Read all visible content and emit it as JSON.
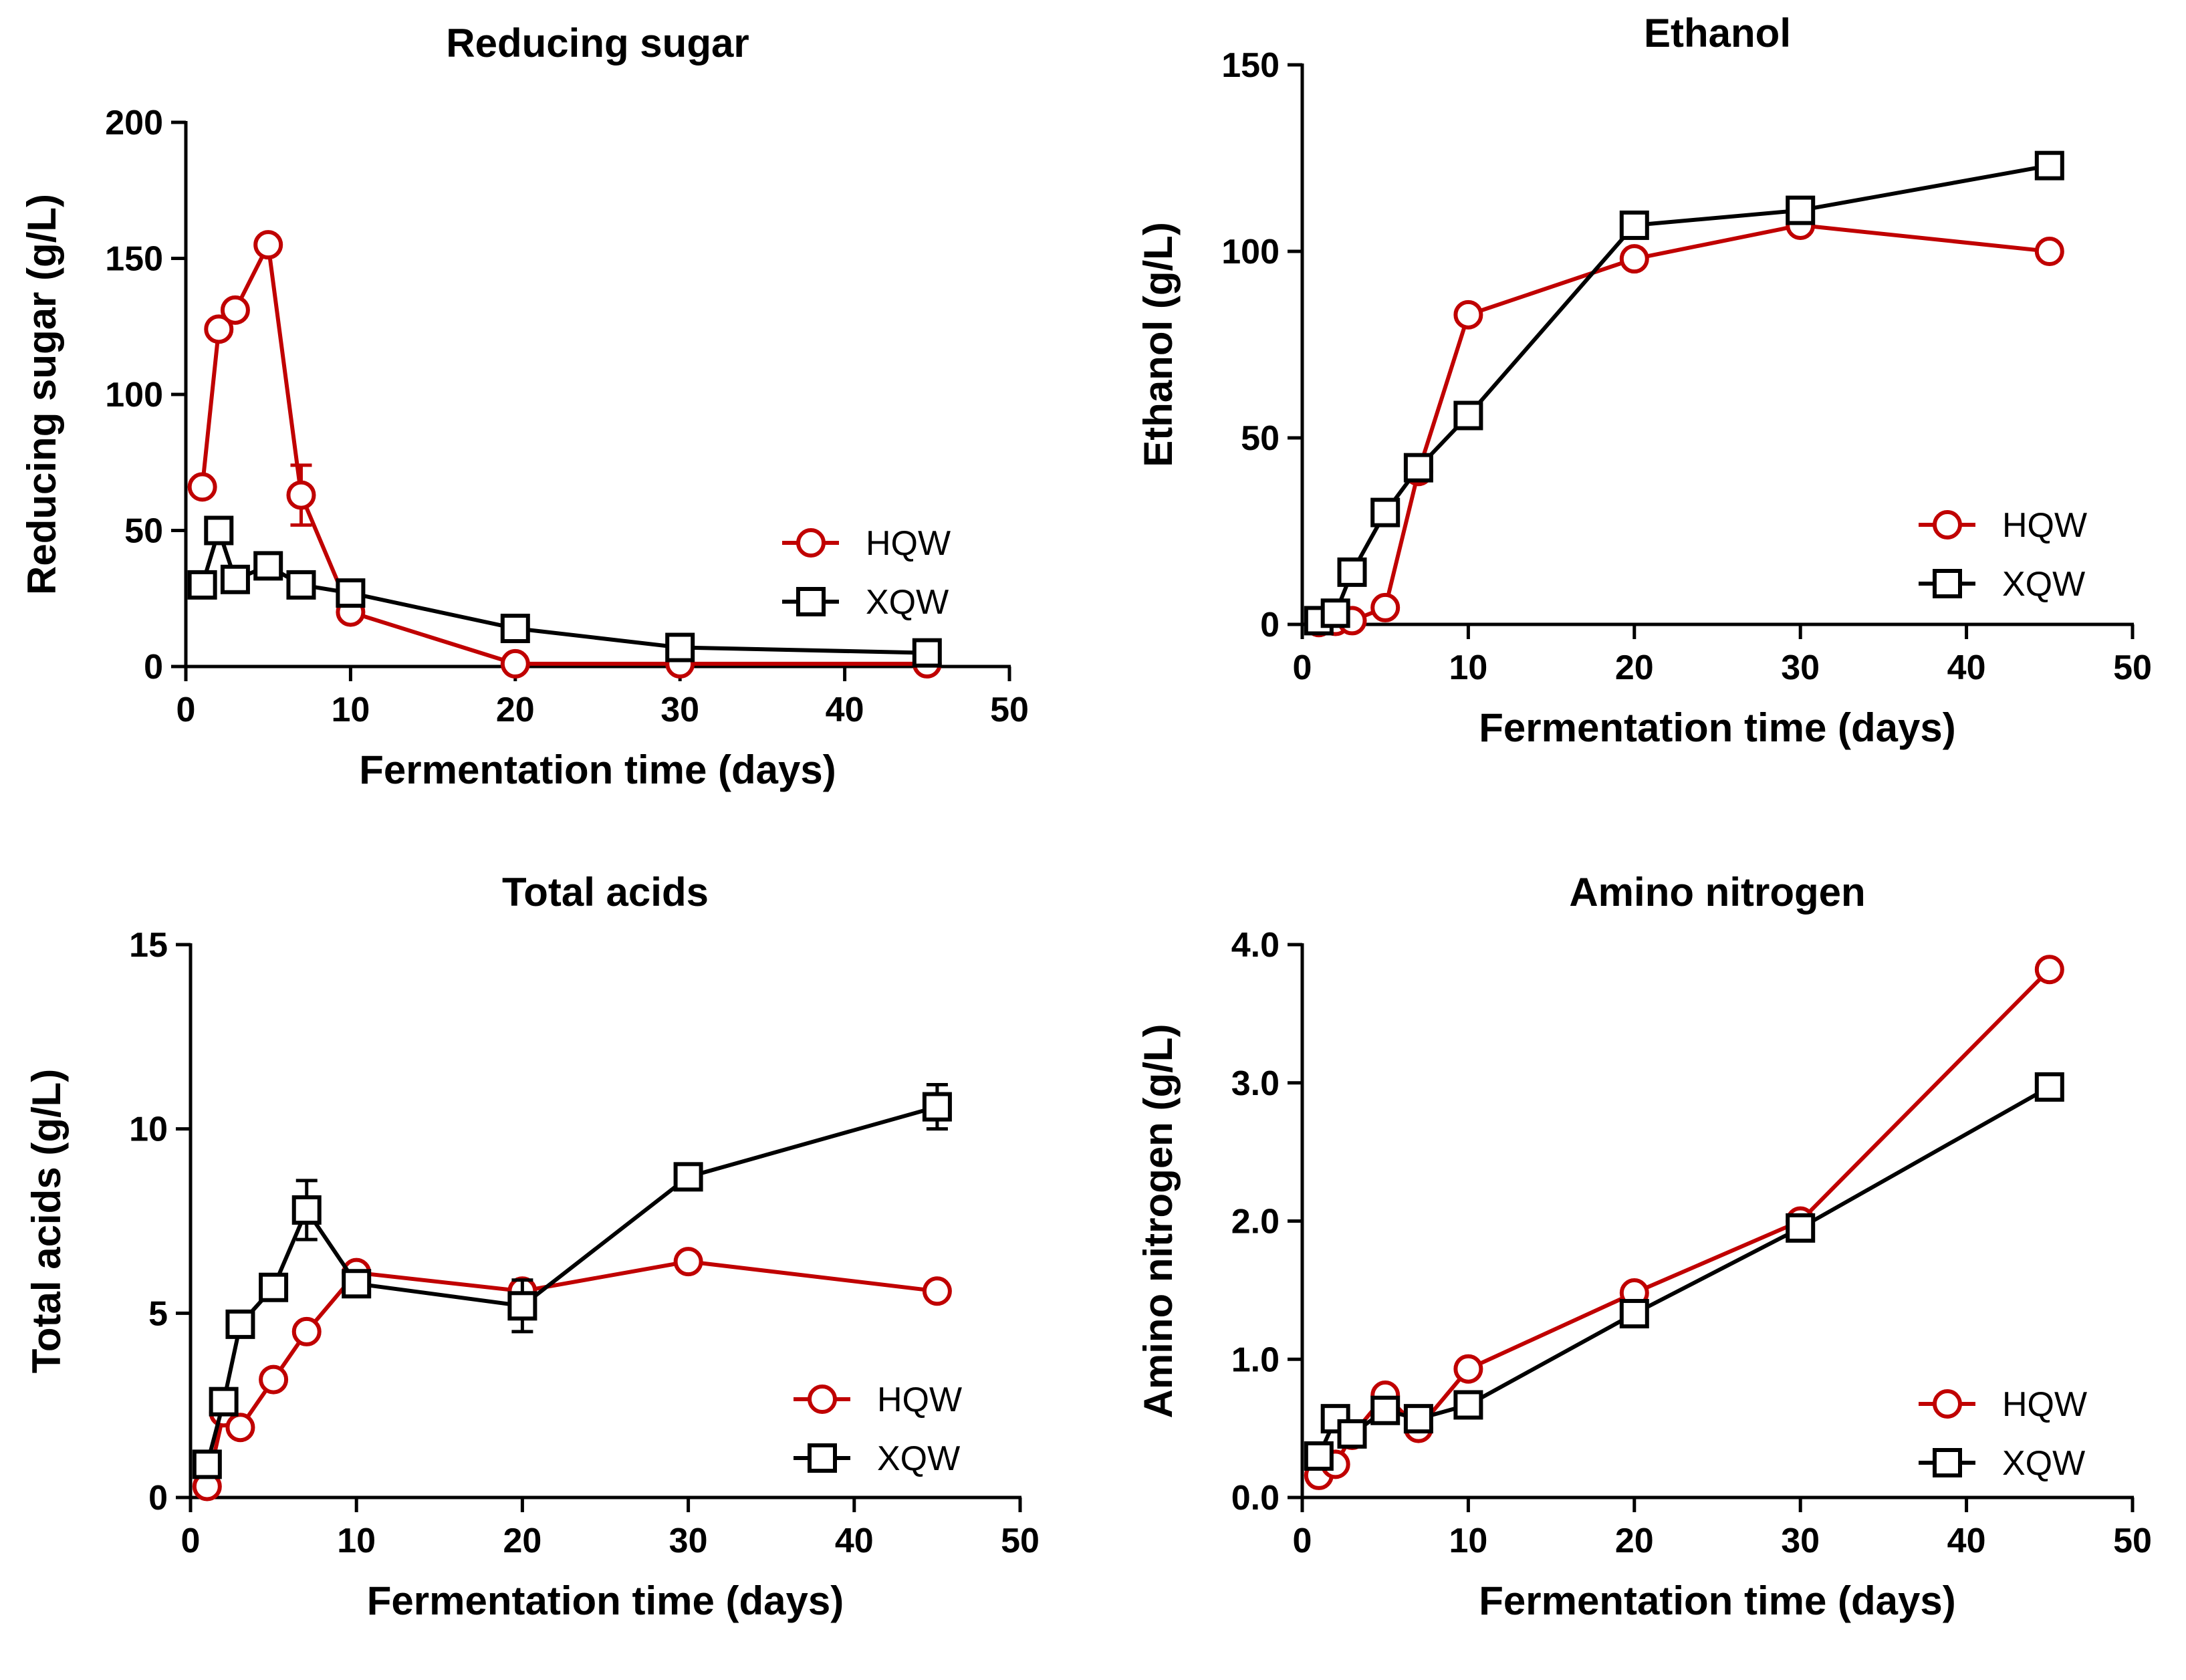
{
  "colors": {
    "HQW": "#c00000",
    "XQW": "#000000"
  },
  "chart_data": [
    {
      "type": "line",
      "title": "Reducing sugar",
      "xlabel": "Fermentation time (days)",
      "ylabel": "Reducing sugar (g/L)",
      "xlim": [
        0,
        50
      ],
      "ylim": [
        0,
        200
      ],
      "xticks": [
        0,
        10,
        20,
        30,
        40,
        50
      ],
      "yticks": [
        0,
        50,
        100,
        150,
        200
      ],
      "xtick_labels": [
        "0",
        "10",
        "20",
        "30",
        "40",
        "50"
      ],
      "ytick_labels": [
        "0",
        "50",
        "100",
        "150",
        "200"
      ],
      "legend_position": "right",
      "series": [
        {
          "name": "HQW",
          "marker": "circle",
          "x": [
            1,
            2,
            3,
            5,
            7,
            10,
            20,
            30,
            45
          ],
          "y": [
            66,
            124,
            131,
            155,
            63,
            20,
            1,
            1,
            1
          ],
          "err": [
            0,
            0,
            0,
            0,
            11,
            0,
            0,
            0,
            0
          ]
        },
        {
          "name": "XQW",
          "marker": "square",
          "x": [
            1,
            2,
            3,
            5,
            7,
            10,
            20,
            30,
            45
          ],
          "y": [
            30,
            50,
            32,
            37,
            30,
            27,
            14,
            7,
            5
          ],
          "err": [
            0,
            0,
            0,
            0,
            0,
            0,
            0,
            0,
            0
          ]
        }
      ]
    },
    {
      "type": "line",
      "title": "Ethanol",
      "xlabel": "Fermentation time (days)",
      "ylabel": "Ethanol (g/L)",
      "xlim": [
        0,
        50
      ],
      "ylim": [
        0,
        150
      ],
      "xticks": [
        0,
        10,
        20,
        30,
        40,
        50
      ],
      "yticks": [
        0,
        50,
        100,
        150
      ],
      "xtick_labels": [
        "0",
        "10",
        "20",
        "30",
        "40",
        "50"
      ],
      "ytick_labels": [
        "0",
        "50",
        "100",
        "150"
      ],
      "legend_position": "bottom-right",
      "series": [
        {
          "name": "HQW",
          "marker": "circle",
          "x": [
            1,
            2,
            3,
            5,
            7,
            10,
            20,
            30,
            45
          ],
          "y": [
            0.5,
            0.8,
            1,
            4.5,
            41,
            83,
            98,
            107,
            100
          ],
          "err": [
            0,
            0,
            0,
            0,
            0,
            0,
            0,
            0,
            0
          ]
        },
        {
          "name": "XQW",
          "marker": "square",
          "x": [
            1,
            2,
            3,
            5,
            7,
            10,
            20,
            30,
            45
          ],
          "y": [
            1,
            3,
            14,
            30,
            42,
            56,
            107,
            111,
            123
          ],
          "err": [
            0,
            0,
            0,
            0,
            0,
            0,
            0,
            0,
            0
          ]
        }
      ]
    },
    {
      "type": "line",
      "title": "Total acids",
      "xlabel": "Fermentation time (days)",
      "ylabel": "Total acids (g/L)",
      "xlim": [
        0,
        50
      ],
      "ylim": [
        0,
        15
      ],
      "xticks": [
        0,
        10,
        20,
        30,
        40,
        50
      ],
      "yticks": [
        0,
        5,
        10,
        15
      ],
      "xtick_labels": [
        "0",
        "10",
        "20",
        "30",
        "40",
        "50"
      ],
      "ytick_labels": [
        "0",
        "5",
        "10",
        "15"
      ],
      "legend_position": "bottom-right",
      "series": [
        {
          "name": "HQW",
          "marker": "circle",
          "x": [
            1,
            2,
            3,
            5,
            7,
            10,
            20,
            30,
            45
          ],
          "y": [
            0.3,
            2.3,
            1.9,
            3.2,
            4.5,
            6.1,
            5.6,
            6.4,
            5.6
          ],
          "err": [
            0,
            0,
            0,
            0,
            0,
            0,
            0,
            0,
            0
          ]
        },
        {
          "name": "XQW",
          "marker": "square",
          "x": [
            1,
            2,
            3,
            5,
            7,
            10,
            20,
            30,
            45
          ],
          "y": [
            0.9,
            2.6,
            4.7,
            5.7,
            7.8,
            5.8,
            5.2,
            8.7,
            10.6
          ],
          "err": [
            0,
            0,
            0,
            0,
            0.8,
            0,
            0.7,
            0,
            0.6
          ]
        }
      ]
    },
    {
      "type": "line",
      "title": "Amino nitrogen",
      "xlabel": "Fermentation time (days)",
      "ylabel": "Amino nitrogen (g/L)",
      "xlim": [
        0,
        50
      ],
      "ylim": [
        0,
        4
      ],
      "xticks": [
        0,
        10,
        20,
        30,
        40,
        50
      ],
      "yticks": [
        0,
        1,
        2,
        3,
        4
      ],
      "xtick_labels": [
        "0",
        "10",
        "20",
        "30",
        "40",
        "50"
      ],
      "ytick_labels": [
        "0.0",
        "1.0",
        "2.0",
        "3.0",
        "4.0"
      ],
      "legend_position": "bottom-right",
      "series": [
        {
          "name": "HQW",
          "marker": "circle",
          "x": [
            1,
            2,
            3,
            5,
            7,
            10,
            20,
            30,
            45
          ],
          "y": [
            0.16,
            0.24,
            0.45,
            0.74,
            0.5,
            0.93,
            1.48,
            2.0,
            3.82
          ],
          "err": [
            0,
            0,
            0,
            0,
            0,
            0,
            0,
            0,
            0
          ]
        },
        {
          "name": "XQW",
          "marker": "square",
          "x": [
            1,
            2,
            3,
            5,
            7,
            10,
            20,
            30,
            45
          ],
          "y": [
            0.3,
            0.57,
            0.46,
            0.63,
            0.57,
            0.67,
            1.33,
            1.95,
            2.97
          ],
          "err": [
            0,
            0,
            0,
            0,
            0,
            0,
            0,
            0,
            0
          ]
        }
      ]
    }
  ]
}
